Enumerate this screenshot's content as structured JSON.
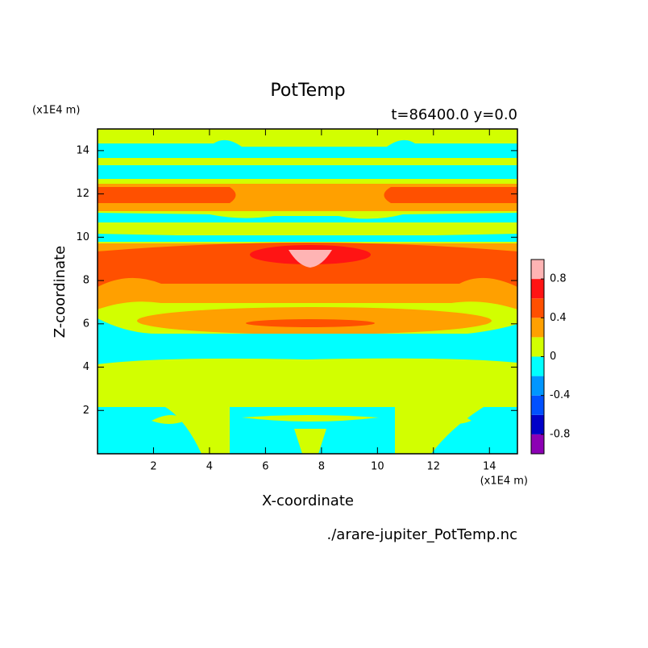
{
  "chart_data": {
    "type": "contour",
    "title": "PotTemp",
    "subtitle": "t=86400.0 y=0.0",
    "x_label": "X-coordinate",
    "y_label": "Z-coordinate",
    "x_unit": "(x1E4 m)",
    "y_unit": "(x1E4 m)",
    "source": "./arare-jupiter_PotTemp.nc",
    "xlim": [
      0,
      15
    ],
    "ylim": [
      0,
      15
    ],
    "xticks": [
      2,
      4,
      6,
      8,
      10,
      12,
      14
    ],
    "yticks": [
      2,
      4,
      6,
      8,
      10,
      12,
      14
    ],
    "colorbar": {
      "levels": [
        -1,
        -0.8,
        -0.6,
        -0.4,
        -0.2,
        0,
        0.2,
        0.4,
        0.6,
        0.8,
        1
      ],
      "colors": [
        "#8c00b4",
        "#0000c8",
        "#0050ff",
        "#0096ff",
        "#00ffff",
        "#d2ff00",
        "#ffa000",
        "#ff5000",
        "#ff1414",
        "#ffb4b4"
      ],
      "ticks": [
        -0.8,
        -0.4,
        0,
        0.4,
        0.8
      ]
    }
  }
}
